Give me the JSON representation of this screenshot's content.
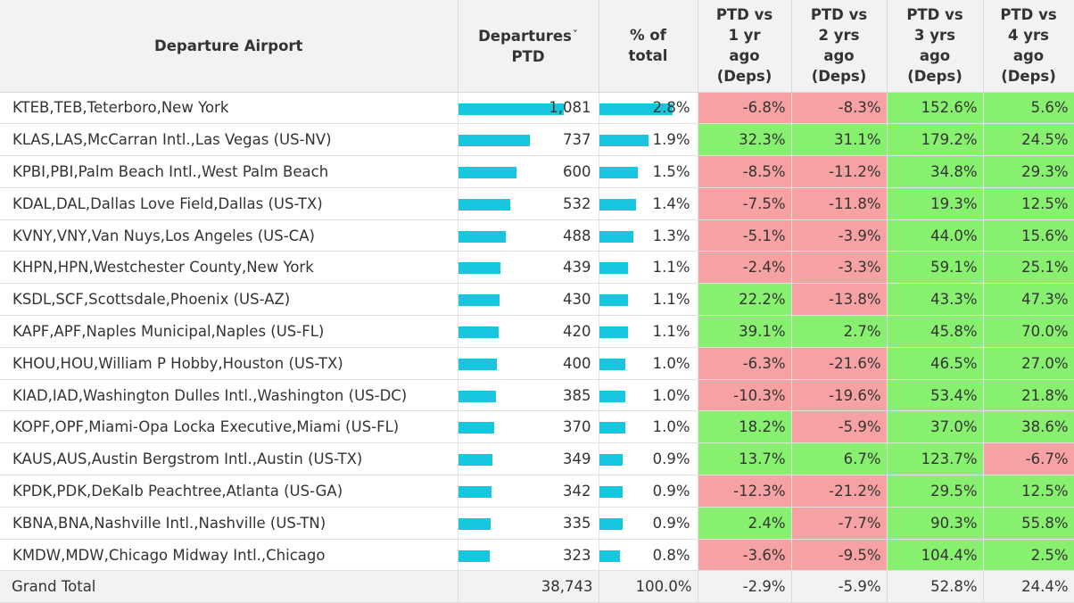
{
  "chart_data": {
    "type": "table",
    "columns": [
      "Departure Airport",
      "Departures PTD",
      "% of total",
      "PTD vs 1 yr ago (Deps)",
      "PTD vs 2 yrs ago (Deps)",
      "PTD vs 3 yrs ago (Deps)",
      "PTD vs 4 yrs ago (Deps)"
    ],
    "header_lines": [
      [
        "Departure Airport"
      ],
      [
        "Departures",
        "PTD"
      ],
      [
        "% of",
        "total"
      ],
      [
        "PTD vs",
        "1 yr",
        "ago",
        "(Deps)"
      ],
      [
        "PTD vs",
        "2 yrs",
        "ago",
        "(Deps)"
      ],
      [
        "PTD vs",
        "3 yrs",
        "ago",
        "(Deps)"
      ],
      [
        "PTD vs",
        "4 yrs",
        "ago",
        "(Deps)"
      ]
    ],
    "sort_indicator": "˅",
    "bar_max": {
      "departures": 1081,
      "share": 2.8
    },
    "rows": [
      {
        "airport": "KTEB,TEB,Teterboro,New York",
        "departures": 1081,
        "departures_label": "1,081",
        "share": 2.8,
        "share_label": "2.8%",
        "v1": -6.8,
        "v1_label": "-6.8%",
        "v2": -8.3,
        "v2_label": "-8.3%",
        "v3": 152.6,
        "v3_label": "152.6%",
        "v4": 5.6,
        "v4_label": "5.6%"
      },
      {
        "airport": "KLAS,LAS,McCarran Intl.,Las Vegas (US-NV)",
        "departures": 737,
        "departures_label": "737",
        "share": 1.9,
        "share_label": "1.9%",
        "v1": 32.3,
        "v1_label": "32.3%",
        "v2": 31.1,
        "v2_label": "31.1%",
        "v3": 179.2,
        "v3_label": "179.2%",
        "v4": 24.5,
        "v4_label": "24.5%"
      },
      {
        "airport": "KPBI,PBI,Palm Beach Intl.,West Palm Beach",
        "departures": 600,
        "departures_label": "600",
        "share": 1.5,
        "share_label": "1.5%",
        "v1": -8.5,
        "v1_label": "-8.5%",
        "v2": -11.2,
        "v2_label": "-11.2%",
        "v3": 34.8,
        "v3_label": "34.8%",
        "v4": 29.3,
        "v4_label": "29.3%"
      },
      {
        "airport": "KDAL,DAL,Dallas Love Field,Dallas (US-TX)",
        "departures": 532,
        "departures_label": "532",
        "share": 1.4,
        "share_label": "1.4%",
        "v1": -7.5,
        "v1_label": "-7.5%",
        "v2": -11.8,
        "v2_label": "-11.8%",
        "v3": 19.3,
        "v3_label": "19.3%",
        "v4": 12.5,
        "v4_label": "12.5%"
      },
      {
        "airport": "KVNY,VNY,Van Nuys,Los Angeles (US-CA)",
        "departures": 488,
        "departures_label": "488",
        "share": 1.3,
        "share_label": "1.3%",
        "v1": -5.1,
        "v1_label": "-5.1%",
        "v2": -3.9,
        "v2_label": "-3.9%",
        "v3": 44.0,
        "v3_label": "44.0%",
        "v4": 15.6,
        "v4_label": "15.6%"
      },
      {
        "airport": "KHPN,HPN,Westchester County,New York",
        "departures": 439,
        "departures_label": "439",
        "share": 1.1,
        "share_label": "1.1%",
        "v1": -2.4,
        "v1_label": "-2.4%",
        "v2": -3.3,
        "v2_label": "-3.3%",
        "v3": 59.1,
        "v3_label": "59.1%",
        "v4": 25.1,
        "v4_label": "25.1%"
      },
      {
        "airport": "KSDL,SCF,Scottsdale,Phoenix (US-AZ)",
        "departures": 430,
        "departures_label": "430",
        "share": 1.1,
        "share_label": "1.1%",
        "v1": 22.2,
        "v1_label": "22.2%",
        "v2": -13.8,
        "v2_label": "-13.8%",
        "v3": 43.3,
        "v3_label": "43.3%",
        "v4": 47.3,
        "v4_label": "47.3%"
      },
      {
        "airport": "KAPF,APF,Naples Municipal,Naples (US-FL)",
        "departures": 420,
        "departures_label": "420",
        "share": 1.1,
        "share_label": "1.1%",
        "v1": 39.1,
        "v1_label": "39.1%",
        "v2": 2.7,
        "v2_label": "2.7%",
        "v3": 45.8,
        "v3_label": "45.8%",
        "v4": 70.0,
        "v4_label": "70.0%"
      },
      {
        "airport": "KHOU,HOU,William P Hobby,Houston (US-TX)",
        "departures": 400,
        "departures_label": "400",
        "share": 1.0,
        "share_label": "1.0%",
        "v1": -6.3,
        "v1_label": "-6.3%",
        "v2": -21.6,
        "v2_label": "-21.6%",
        "v3": 46.5,
        "v3_label": "46.5%",
        "v4": 27.0,
        "v4_label": "27.0%"
      },
      {
        "airport": "KIAD,IAD,Washington Dulles Intl.,Washington (US-DC)",
        "departures": 385,
        "departures_label": "385",
        "share": 1.0,
        "share_label": "1.0%",
        "v1": -10.3,
        "v1_label": "-10.3%",
        "v2": -19.6,
        "v2_label": "-19.6%",
        "v3": 53.4,
        "v3_label": "53.4%",
        "v4": 21.8,
        "v4_label": "21.8%"
      },
      {
        "airport": "KOPF,OPF,Miami-Opa Locka Executive,Miami (US-FL)",
        "departures": 370,
        "departures_label": "370",
        "share": 1.0,
        "share_label": "1.0%",
        "v1": 18.2,
        "v1_label": "18.2%",
        "v2": -5.9,
        "v2_label": "-5.9%",
        "v3": 37.0,
        "v3_label": "37.0%",
        "v4": 38.6,
        "v4_label": "38.6%"
      },
      {
        "airport": "KAUS,AUS,Austin Bergstrom Intl.,Austin (US-TX)",
        "departures": 349,
        "departures_label": "349",
        "share": 0.9,
        "share_label": "0.9%",
        "v1": 13.7,
        "v1_label": "13.7%",
        "v2": 6.7,
        "v2_label": "6.7%",
        "v3": 123.7,
        "v3_label": "123.7%",
        "v4": -6.7,
        "v4_label": "-6.7%"
      },
      {
        "airport": "KPDK,PDK,DeKalb Peachtree,Atlanta (US-GA)",
        "departures": 342,
        "departures_label": "342",
        "share": 0.9,
        "share_label": "0.9%",
        "v1": -12.3,
        "v1_label": "-12.3%",
        "v2": -21.2,
        "v2_label": "-21.2%",
        "v3": 29.5,
        "v3_label": "29.5%",
        "v4": 12.5,
        "v4_label": "12.5%"
      },
      {
        "airport": "KBNA,BNA,Nashville Intl.,Nashville (US-TN)",
        "departures": 335,
        "departures_label": "335",
        "share": 0.9,
        "share_label": "0.9%",
        "v1": 2.4,
        "v1_label": "2.4%",
        "v2": -7.7,
        "v2_label": "-7.7%",
        "v3": 90.3,
        "v3_label": "90.3%",
        "v4": 55.8,
        "v4_label": "55.8%"
      },
      {
        "airport": "KMDW,MDW,Chicago Midway Intl.,Chicago",
        "departures": 323,
        "departures_label": "323",
        "share": 0.8,
        "share_label": "0.8%",
        "v1": -3.6,
        "v1_label": "-3.6%",
        "v2": -9.5,
        "v2_label": "-9.5%",
        "v3": 104.4,
        "v3_label": "104.4%",
        "v4": 2.5,
        "v4_label": "2.5%"
      }
    ],
    "total": {
      "label": "Grand Total",
      "departures_label": "38,743",
      "share_label": "100.0%",
      "v1_label": "-2.9%",
      "v2_label": "-5.9%",
      "v3_label": "52.8%",
      "v4_label": "24.4%"
    },
    "colors": {
      "bar": "#18c6df",
      "positive": "#88f06f",
      "negative": "#f7a2a2",
      "header_bg": "#f2f2f2"
    }
  }
}
